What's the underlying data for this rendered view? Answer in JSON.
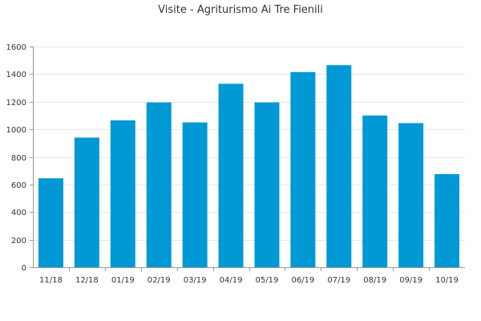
{
  "chart_data": {
    "type": "bar",
    "title": "Visite - Agriturismo Ai Tre Fienili",
    "xlabel": "",
    "ylabel": "",
    "categories": [
      "11/18",
      "12/18",
      "01/19",
      "02/19",
      "03/19",
      "04/19",
      "05/19",
      "06/19",
      "07/19",
      "08/19",
      "09/19",
      "10/19"
    ],
    "values": [
      645,
      940,
      1065,
      1195,
      1050,
      1330,
      1195,
      1415,
      1465,
      1100,
      1045,
      675
    ],
    "ylim": [
      0,
      1600
    ],
    "yticks": [
      0,
      200,
      400,
      600,
      800,
      1000,
      1200,
      1400,
      1600
    ],
    "grid": true,
    "bar_color": "#0099d6"
  }
}
